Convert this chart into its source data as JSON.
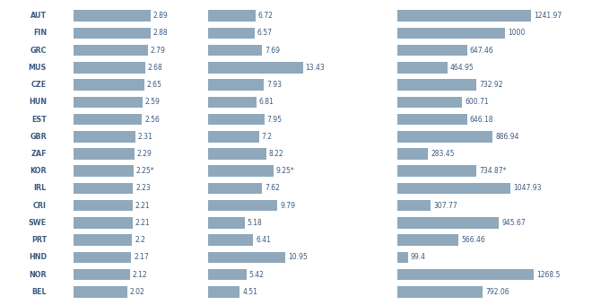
{
  "countries": [
    "AUT",
    "FIN",
    "GRC",
    "MUS",
    "CZE",
    "HUN",
    "EST",
    "GBR",
    "ZAF",
    "KOR",
    "IRL",
    "CRI",
    "SWE",
    "PRT",
    "HND",
    "NOR",
    "BEL"
  ],
  "col1_values": [
    2.89,
    2.88,
    2.79,
    2.68,
    2.65,
    2.59,
    2.56,
    2.31,
    2.29,
    2.25,
    2.23,
    2.21,
    2.21,
    2.2,
    2.17,
    2.12,
    2.02
  ],
  "col1_labels": [
    "2.89",
    "2.88",
    "2.79",
    "2.68",
    "2.65",
    "2.59",
    "2.56",
    "2.31",
    "2.29",
    "2.25*",
    "2.23",
    "2.21",
    "2.21",
    "2.2",
    "2.17",
    "2.12",
    "2.02"
  ],
  "col2_values": [
    6.72,
    6.57,
    7.69,
    13.43,
    7.93,
    6.81,
    7.95,
    7.2,
    8.22,
    9.25,
    7.62,
    9.79,
    5.18,
    6.41,
    10.95,
    5.42,
    4.51
  ],
  "col2_labels": [
    "6.72",
    "6.57",
    "7.69",
    "13.43",
    "7.93",
    "6.81",
    "7.95",
    "7.2",
    "8.22",
    "9.25*",
    "7.62",
    "9.79",
    "5.18",
    "6.41",
    "10.95",
    "5.42",
    "4.51"
  ],
  "col3_values": [
    1241.97,
    1000,
    647.46,
    464.95,
    732.92,
    600.71,
    646.18,
    886.94,
    283.45,
    734.87,
    1047.93,
    307.77,
    945.67,
    566.46,
    99.4,
    1268.5,
    792.06
  ],
  "col3_labels": [
    "1241.97",
    "1000",
    "647.46",
    "464.95",
    "732.92",
    "600.71",
    "646.18",
    "886.94",
    "283.45",
    "734.87*",
    "1047.93",
    "307.77",
    "945.67",
    "566.46",
    "99.4",
    "1268.5",
    "792.06"
  ],
  "bar_color": "#8fa8bb",
  "text_color": "#3a5a80",
  "bg_color": "#ffffff",
  "col1_max": 3.2,
  "col2_max": 15.0,
  "col3_max": 1400,
  "bar_height": 0.65
}
